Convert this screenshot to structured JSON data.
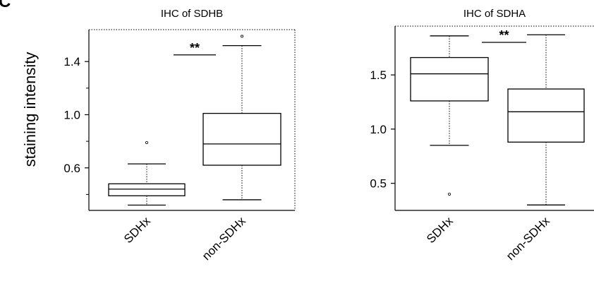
{
  "figure": {
    "panel_label": "C",
    "ylabel": "staining intensity"
  },
  "chart_data": [
    {
      "type": "box",
      "title": "IHC of SDHB",
      "xlabel": "",
      "ylabel": "staining intensity",
      "ylim": [
        0.28,
        1.64
      ],
      "yticks": [
        0.6,
        1.0,
        1.4
      ],
      "yticklabels": [
        "0.6",
        "1.0",
        "1.4"
      ],
      "minor_yticks": [
        0.4,
        0.8,
        1.2
      ],
      "categories": [
        "SDHx",
        "non-SDHx"
      ],
      "boxes": [
        {
          "name": "SDHx",
          "whisker_low": 0.32,
          "q1": 0.39,
          "median": 0.44,
          "q3": 0.48,
          "whisker_high": 0.63,
          "outliers": [
            0.79
          ]
        },
        {
          "name": "non-SDHx",
          "whisker_low": 0.36,
          "q1": 0.62,
          "median": 0.78,
          "q3": 1.01,
          "whisker_high": 1.52,
          "outliers": [
            1.59
          ]
        }
      ],
      "significance": {
        "label": "**",
        "between": [
          "SDHx",
          "non-SDHx"
        ],
        "y": 1.45
      }
    },
    {
      "type": "box",
      "title": "IHC of SDHA",
      "xlabel": "",
      "ylabel": "",
      "ylim": [
        0.25,
        1.95
      ],
      "yticks": [
        0.5,
        1.0,
        1.5
      ],
      "yticklabels": [
        "0.5",
        "1.0",
        "1.5"
      ],
      "categories": [
        "SDHx",
        "non-SDHx"
      ],
      "boxes": [
        {
          "name": "SDHx",
          "whisker_low": 0.85,
          "q1": 1.26,
          "median": 1.51,
          "q3": 1.66,
          "whisker_high": 1.86,
          "outliers": [
            0.4
          ]
        },
        {
          "name": "non-SDHx",
          "whisker_low": 0.3,
          "q1": 0.88,
          "median": 1.16,
          "q3": 1.37,
          "whisker_high": 1.87,
          "outliers": []
        }
      ],
      "significance": {
        "label": "**",
        "between": [
          "SDHx",
          "non-SDHx"
        ],
        "y": 1.8
      }
    }
  ]
}
